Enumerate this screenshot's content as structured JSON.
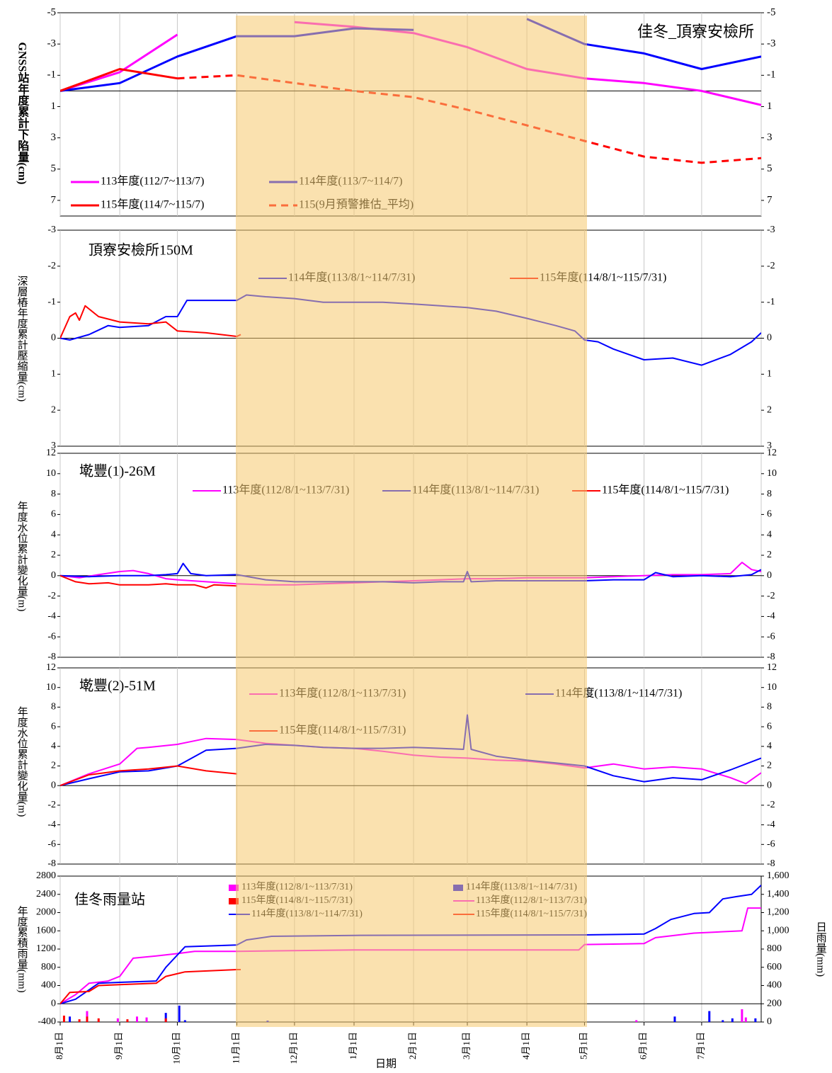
{
  "chart_data": [
    {
      "type": "line",
      "title": "佳冬_頂寮安檢所",
      "ylabel": "GNSS站年度累計下陷量(cm)",
      "ylim": [
        -5,
        8
      ],
      "y_inverted": true,
      "yticks": [
        -5,
        -3,
        -1,
        1,
        3,
        5,
        7
      ],
      "y_mirror": true,
      "tick_color": "#ff0000",
      "xlim": [
        0,
        365
      ],
      "xticks": [
        0,
        31,
        61,
        92,
        122,
        153,
        184,
        212,
        243,
        273,
        304,
        334,
        365
      ],
      "grid": "x",
      "series": [
        {
          "name": "113年度(112/7~113/7)",
          "color": "#ff00ff",
          "x": [
            0,
            31,
            61,
            92,
            122,
            153,
            184,
            212,
            243,
            273,
            304,
            334,
            365
          ],
          "values": [
            0,
            -1.2,
            -3.6,
            null,
            -4.4,
            -4.1,
            -3.7,
            -2.8,
            -1.4,
            -0.8,
            -0.5,
            0,
            0.9
          ]
        },
        {
          "name": "114年度(113/7~114/7)",
          "color": "#0000ff",
          "x": [
            0,
            31,
            61,
            92,
            122,
            153,
            184,
            212,
            243,
            273,
            304,
            334,
            365
          ],
          "values": [
            0,
            -0.5,
            -2.2,
            -3.5,
            -3.5,
            -4.0,
            -3.9,
            null,
            -4.6,
            -3.0,
            -2.4,
            -1.4,
            -2.2
          ]
        },
        {
          "name": "115年度(114/7~115/7)",
          "color": "#ff0000",
          "x": [
            0,
            31,
            61
          ],
          "values": [
            0,
            -1.4,
            -0.8
          ]
        },
        {
          "name": "115(9月預警推估_平均)",
          "color": "#ff0000",
          "dashed": true,
          "x": [
            61,
            92,
            122,
            153,
            184,
            212,
            243,
            273,
            304,
            334,
            365
          ],
          "values": [
            -0.8,
            -1.0,
            -0.5,
            0,
            0.4,
            1.2,
            2.2,
            3.2,
            4.2,
            4.6,
            4.3
          ]
        }
      ]
    },
    {
      "type": "line",
      "title": "頂寮安檢所150M",
      "ylabel": "深層樁年度累計壓縮量(cm)",
      "ylim": [
        -3,
        3
      ],
      "y_inverted": true,
      "yticks": [
        -3,
        -2,
        -1,
        0,
        1,
        2,
        3
      ],
      "y_mirror": true,
      "xlim": [
        0,
        365
      ],
      "xticks": [
        0,
        31,
        61,
        92,
        122,
        153,
        184,
        212,
        243,
        273,
        304,
        334,
        365
      ],
      "grid": "x",
      "series": [
        {
          "name": "114年度(113/8/1~114/7/31)",
          "color": "#0000ff",
          "x": [
            0,
            5,
            15,
            25,
            31,
            46,
            55,
            61,
            66,
            92,
            97,
            107,
            122,
            137,
            153,
            168,
            184,
            198,
            212,
            227,
            243,
            258,
            268,
            273,
            280,
            288,
            304,
            319,
            334,
            349,
            360,
            365
          ],
          "values": [
            0,
            0.05,
            -0.1,
            -0.35,
            -0.3,
            -0.35,
            -0.6,
            -0.6,
            -1.05,
            -1.05,
            -1.2,
            -1.15,
            -1.1,
            -1.0,
            -1.0,
            -1.0,
            -0.95,
            -0.9,
            -0.85,
            -0.75,
            -0.55,
            -0.35,
            -0.2,
            0.05,
            0.1,
            0.3,
            0.6,
            0.55,
            0.75,
            0.45,
            0.1,
            -0.15
          ]
        },
        {
          "name": "115年度(114/8/1~115/7/31)",
          "color": "#ff0000",
          "x": [
            0,
            5,
            8,
            10,
            13,
            20,
            31,
            46,
            55,
            61,
            76,
            92,
            94
          ],
          "values": [
            0,
            -0.6,
            -0.7,
            -0.5,
            -0.9,
            -0.6,
            -0.45,
            -0.4,
            -0.45,
            -0.2,
            -0.15,
            -0.05,
            -0.1
          ]
        }
      ]
    },
    {
      "type": "line",
      "title": "墘豐(1)-26M",
      "ylabel": "年度水位累計變化量(m)",
      "ylim": [
        -8,
        12
      ],
      "yticks": [
        -8,
        -6,
        -4,
        -2,
        0,
        2,
        4,
        6,
        8,
        10,
        12
      ],
      "y_mirror": true,
      "xlim": [
        0,
        365
      ],
      "xticks": [
        0,
        31,
        61,
        92,
        122,
        153,
        184,
        212,
        243,
        273,
        304,
        334,
        365
      ],
      "grid": "x",
      "series": [
        {
          "name": "113年度(112/8/1~113/7/31)",
          "color": "#ff00ff",
          "x": [
            0,
            10,
            20,
            31,
            38,
            46,
            55,
            61,
            76,
            92,
            107,
            122,
            137,
            153,
            168,
            184,
            198,
            212,
            227,
            243,
            258,
            273,
            288,
            304,
            319,
            334,
            349,
            355,
            360,
            365
          ],
          "values": [
            0,
            -0.2,
            0.1,
            0.4,
            0.5,
            0.2,
            -0.3,
            -0.4,
            -0.6,
            -0.8,
            -0.9,
            -0.9,
            -0.8,
            -0.7,
            -0.6,
            -0.5,
            -0.4,
            -0.3,
            -0.3,
            -0.2,
            -0.2,
            -0.2,
            -0.1,
            0,
            0.1,
            0.1,
            0.2,
            1.3,
            0.6,
            0.4
          ]
        },
        {
          "name": "114年度(113/8/1~114/7/31)",
          "color": "#0000ff",
          "x": [
            0,
            15,
            31,
            46,
            55,
            61,
            64,
            68,
            76,
            92,
            107,
            122,
            137,
            153,
            168,
            184,
            198,
            210,
            212,
            214,
            227,
            243,
            258,
            273,
            288,
            304,
            310,
            319,
            334,
            349,
            360,
            365
          ],
          "values": [
            0,
            -0.1,
            0,
            0,
            0.1,
            0.2,
            1.2,
            0.2,
            0,
            0.1,
            -0.4,
            -0.6,
            -0.6,
            -0.6,
            -0.6,
            -0.7,
            -0.6,
            -0.6,
            0.4,
            -0.6,
            -0.5,
            -0.5,
            -0.5,
            -0.5,
            -0.4,
            -0.4,
            0.3,
            -0.1,
            0,
            -0.1,
            0.1,
            0.6
          ]
        },
        {
          "name": "115年度(114/8/1~115/7/31)",
          "color": "#ff0000",
          "x": [
            0,
            8,
            15,
            25,
            31,
            46,
            55,
            61,
            70,
            76,
            80,
            92
          ],
          "values": [
            0,
            -0.6,
            -0.8,
            -0.7,
            -0.9,
            -0.9,
            -0.8,
            -0.9,
            -0.9,
            -1.2,
            -0.9,
            -1.0
          ]
        }
      ]
    },
    {
      "type": "line",
      "title": "墘豐(2)-51M",
      "ylabel": "年度水位累計變化量(m)",
      "ylim": [
        -8,
        12
      ],
      "yticks": [
        -8,
        -6,
        -4,
        -2,
        0,
        2,
        4,
        6,
        8,
        10,
        12
      ],
      "y_mirror": true,
      "xlim": [
        0,
        365
      ],
      "xticks": [
        0,
        31,
        61,
        92,
        122,
        153,
        184,
        212,
        243,
        273,
        304,
        334,
        365
      ],
      "grid": "x",
      "series": [
        {
          "name": "113年度(112/8/1~113/7/31)",
          "color": "#ff00ff",
          "x": [
            0,
            15,
            31,
            40,
            46,
            61,
            76,
            92,
            107,
            122,
            137,
            153,
            168,
            184,
            198,
            212,
            227,
            243,
            258,
            273,
            288,
            304,
            319,
            334,
            349,
            357,
            365
          ],
          "values": [
            0,
            1.2,
            2.2,
            3.8,
            3.9,
            4.2,
            4.8,
            4.7,
            4.3,
            4.1,
            3.9,
            3.8,
            3.5,
            3.1,
            2.9,
            2.8,
            2.6,
            2.5,
            2.2,
            1.8,
            2.2,
            1.7,
            1.9,
            1.7,
            0.8,
            0.2,
            1.3
          ]
        },
        {
          "name": "114年度(113/8/1~114/7/31)",
          "color": "#0000ff",
          "x": [
            0,
            15,
            31,
            46,
            61,
            76,
            92,
            107,
            122,
            137,
            153,
            168,
            184,
            198,
            210,
            212,
            214,
            227,
            243,
            258,
            273,
            288,
            304,
            319,
            334,
            349,
            365
          ],
          "values": [
            0,
            0.7,
            1.4,
            1.5,
            2.0,
            3.6,
            3.8,
            4.2,
            4.1,
            3.9,
            3.8,
            3.8,
            3.9,
            3.8,
            3.7,
            7.2,
            3.7,
            3.0,
            2.6,
            2.3,
            2.0,
            1.0,
            0.4,
            0.8,
            0.6,
            1.6,
            2.8
          ]
        },
        {
          "name": "115年度(114/8/1~115/7/31)",
          "color": "#ff0000",
          "x": [
            0,
            15,
            31,
            46,
            61,
            76,
            92
          ],
          "values": [
            0,
            1.1,
            1.5,
            1.7,
            2.0,
            1.5,
            1.2
          ]
        }
      ]
    },
    {
      "type": "combo",
      "title": "佳冬雨量站",
      "ylabel": "年度累積雨量(mm)",
      "y2label": "日雨量(mm)",
      "xlabel": "日期",
      "ylim": [
        -400,
        2800
      ],
      "yticks": [
        -400,
        0,
        400,
        800,
        1200,
        1600,
        2000,
        2400,
        2800
      ],
      "y2lim": [
        0,
        1600
      ],
      "y2ticks": [
        0,
        200,
        400,
        600,
        800,
        {
          "value": 1000,
          "label": "1,000"
        },
        {
          "value": 1200,
          "label": "1,200"
        },
        {
          "value": 1400,
          "label": "1,400"
        },
        {
          "value": 1600,
          "label": "1,600"
        }
      ],
      "xlim": [
        0,
        365
      ],
      "grid": "x",
      "xticks": [
        {
          "value": 0,
          "label": "8月1日"
        },
        {
          "value": 31,
          "label": "9月1日"
        },
        {
          "value": 61,
          "label": "10月1日"
        },
        {
          "value": 92,
          "label": "11月1日"
        },
        {
          "value": 122,
          "label": "12月1日"
        },
        {
          "value": 153,
          "label": "1月1日"
        },
        {
          "value": 184,
          "label": "2月1日"
        },
        {
          "value": 212,
          "label": "3月1日"
        },
        {
          "value": 243,
          "label": "4月1日"
        },
        {
          "value": 273,
          "label": "5月1日"
        },
        {
          "value": 304,
          "label": "6月1日"
        },
        {
          "value": 334,
          "label": "7月1日"
        }
      ],
      "series": [
        {
          "name": "113年度(112/8/1~113/7/31)",
          "kind": "bar",
          "axis": "y2",
          "color": "#ff00ff",
          "x": [
            14,
            30,
            40,
            45,
            300,
            355,
            357
          ],
          "values": [
            120,
            40,
            60,
            50,
            20,
            140,
            50
          ]
        },
        {
          "name": "114年度(113/8/1~114/7/31)",
          "kind": "bar",
          "axis": "y2",
          "color": "#0000ff",
          "x": [
            5,
            55,
            62,
            65,
            108,
            320,
            338,
            345,
            350,
            362
          ],
          "values": [
            60,
            100,
            180,
            20,
            15,
            60,
            120,
            20,
            40,
            40
          ]
        },
        {
          "name": "115年度(114/8/1~115/7/31)",
          "kind": "bar",
          "axis": "y2",
          "color": "#ff0000",
          "x": [
            2,
            10,
            14,
            20,
            35,
            55
          ],
          "values": [
            70,
            30,
            60,
            40,
            30,
            40
          ]
        },
        {
          "name": "113年度(112/8/1~113/7/31)",
          "kind": "line",
          "color": "#ff00ff",
          "x": [
            0,
            8,
            15,
            25,
            31,
            38,
            50,
            61,
            70,
            92,
            153,
            270,
            273,
            304,
            310,
            330,
            340,
            355,
            358,
            365
          ],
          "values": [
            0,
            200,
            450,
            500,
            600,
            1000,
            1050,
            1100,
            1150,
            1150,
            1180,
            1180,
            1300,
            1320,
            1450,
            1550,
            1570,
            1600,
            2100,
            2100
          ]
        },
        {
          "name": "114年度(113/8/1~114/7/31)",
          "kind": "line",
          "color": "#0000ff",
          "x": [
            0,
            8,
            20,
            31,
            50,
            55,
            65,
            92,
            97,
            110,
            153,
            273,
            304,
            310,
            318,
            330,
            338,
            345,
            352,
            360,
            365
          ],
          "values": [
            0,
            100,
            450,
            470,
            500,
            800,
            1250,
            1290,
            1400,
            1480,
            1500,
            1510,
            1530,
            1650,
            1850,
            1980,
            2000,
            2300,
            2350,
            2400,
            2600
          ]
        },
        {
          "name": "115年度(114/8/1~115/7/31)",
          "kind": "line",
          "color": "#ff0000",
          "x": [
            0,
            5,
            15,
            20,
            31,
            50,
            55,
            65,
            92,
            94
          ],
          "values": [
            0,
            250,
            270,
            400,
            420,
            450,
            600,
            700,
            750,
            750
          ]
        }
      ]
    }
  ]
}
